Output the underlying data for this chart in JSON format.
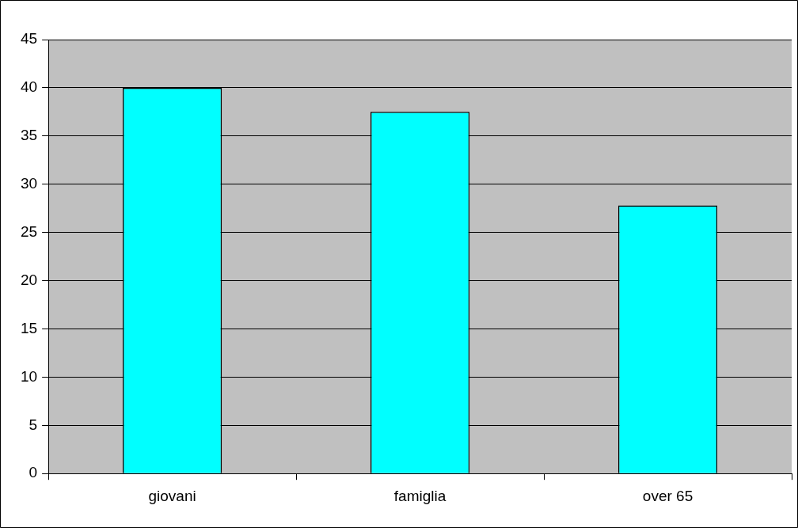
{
  "chart_data": {
    "type": "bar",
    "categories": [
      "giovani",
      "famiglia",
      "over 65"
    ],
    "values": [
      40,
      37.5,
      27.8
    ],
    "color": "#00ffff",
    "ylim": [
      0,
      45
    ],
    "yticks": [
      0,
      5,
      10,
      15,
      20,
      25,
      30,
      35,
      40,
      45
    ],
    "grid": "y",
    "legend": false
  }
}
